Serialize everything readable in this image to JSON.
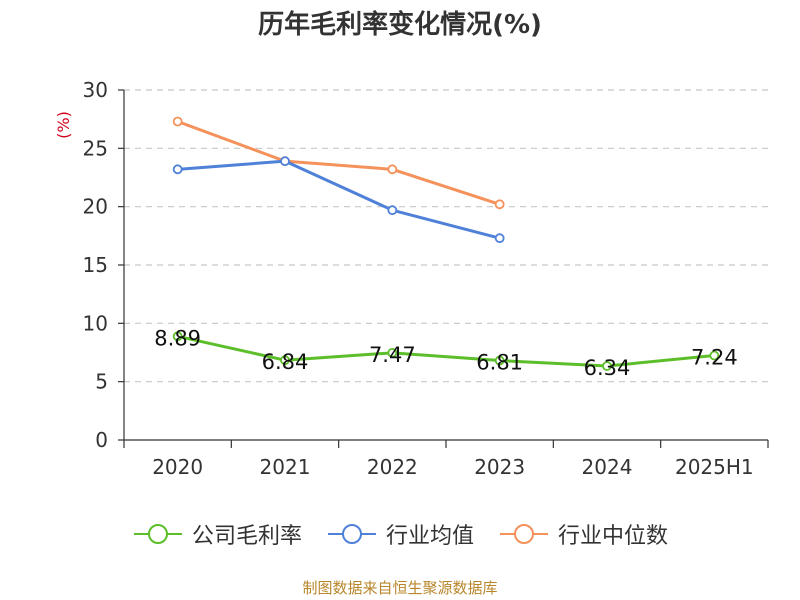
{
  "title": "历年毛利率变化情况(%)",
  "source": "制图数据来自恒生聚源数据库",
  "chart_data": {
    "type": "line",
    "title": "历年毛利率变化情况(%)",
    "ylabel": "(%)",
    "xlabel": "",
    "categories": [
      "2020",
      "2021",
      "2022",
      "2023",
      "2024",
      "2025H1"
    ],
    "ylim": [
      0,
      30
    ],
    "yticks": [
      0,
      5,
      10,
      15,
      20,
      25,
      30
    ],
    "grid": true,
    "legend_position": "bottom",
    "series": [
      {
        "name": "公司毛利率",
        "color": "#5cbf2a",
        "values": [
          8.89,
          6.84,
          7.47,
          6.81,
          6.34,
          7.24
        ],
        "show_labels": true
      },
      {
        "name": "行业均值",
        "color": "#4f81d9",
        "values": [
          23.2,
          23.9,
          19.7,
          17.3,
          null,
          null
        ],
        "show_labels": false
      },
      {
        "name": "行业中位数",
        "color": "#f5915a",
        "values": [
          27.3,
          23.9,
          23.2,
          20.2,
          null,
          null
        ],
        "show_labels": false
      }
    ]
  }
}
